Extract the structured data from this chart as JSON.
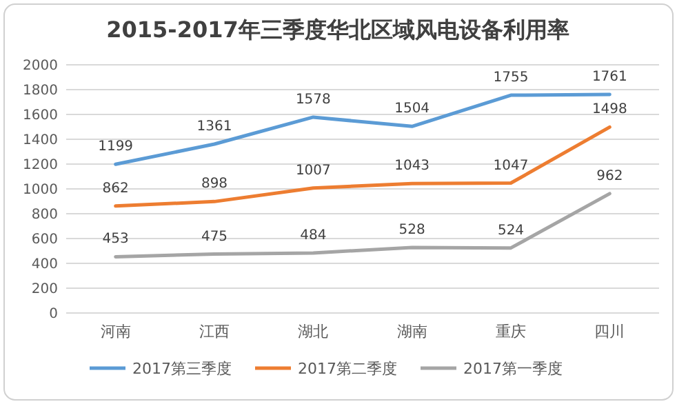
{
  "chart_data": {
    "type": "line",
    "title": "2015-2017年三季度华北区域风电设备利用率",
    "categories": [
      "河南",
      "江西",
      "湖北",
      "湖南",
      "重庆",
      "四川"
    ],
    "series": [
      {
        "name": "2017第三季度",
        "color": "#5b9bd5",
        "values": [
          1199,
          1361,
          1578,
          1504,
          1755,
          1761
        ]
      },
      {
        "name": "2017第二季度",
        "color": "#ed7d31",
        "values": [
          862,
          898,
          1007,
          1043,
          1047,
          1498
        ]
      },
      {
        "name": "2017第一季度",
        "color": "#a5a5a5",
        "values": [
          453,
          475,
          484,
          528,
          524,
          962
        ]
      }
    ],
    "ylim": [
      0,
      2000
    ],
    "yticks": [
      0,
      200,
      400,
      600,
      800,
      1000,
      1200,
      1400,
      1600,
      1800,
      2000
    ],
    "grid": "y",
    "legend": "bottom",
    "data_labels": true,
    "marker": "none",
    "line_style": "solid"
  }
}
